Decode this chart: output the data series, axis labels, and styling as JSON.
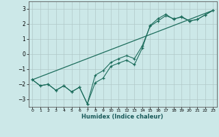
{
  "xlabel": "Humidex (Indice chaleur)",
  "ylabel": "",
  "bg_color": "#cce8e8",
  "grid_color": "#b0c8c8",
  "line_color": "#1a6b5a",
  "xlim": [
    -0.5,
    23.5
  ],
  "ylim": [
    -3.5,
    3.5
  ],
  "xticks": [
    0,
    1,
    2,
    3,
    4,
    5,
    6,
    7,
    8,
    9,
    10,
    11,
    12,
    13,
    14,
    15,
    16,
    17,
    18,
    19,
    20,
    21,
    22,
    23
  ],
  "yticks": [
    -3,
    -2,
    -1,
    0,
    1,
    2,
    3
  ],
  "series1_x": [
    0,
    1,
    2,
    3,
    4,
    5,
    6,
    7,
    8,
    9,
    10,
    11,
    12,
    13,
    14,
    15,
    16,
    17,
    18,
    19,
    20,
    21,
    22,
    23
  ],
  "series1_y": [
    -1.7,
    -2.1,
    -2.0,
    -2.4,
    -2.1,
    -2.5,
    -2.2,
    -3.3,
    -1.9,
    -1.6,
    -0.8,
    -0.6,
    -0.4,
    -0.7,
    0.4,
    1.9,
    2.35,
    2.65,
    2.3,
    2.5,
    2.2,
    2.3,
    2.6,
    2.9
  ],
  "series2_x": [
    0,
    1,
    2,
    3,
    4,
    5,
    6,
    7,
    8,
    9,
    10,
    11,
    12,
    13,
    14,
    15,
    16,
    17,
    18,
    19,
    20,
    21,
    22,
    23
  ],
  "series2_y": [
    -1.7,
    -2.1,
    -2.0,
    -2.4,
    -2.1,
    -2.5,
    -2.2,
    -3.3,
    -1.4,
    -1.1,
    -0.55,
    -0.3,
    -0.1,
    -0.3,
    0.55,
    1.85,
    2.2,
    2.55,
    2.35,
    2.45,
    2.2,
    2.3,
    2.6,
    2.9
  ],
  "series3_x": [
    0,
    23
  ],
  "series3_y": [
    -1.7,
    2.9
  ]
}
